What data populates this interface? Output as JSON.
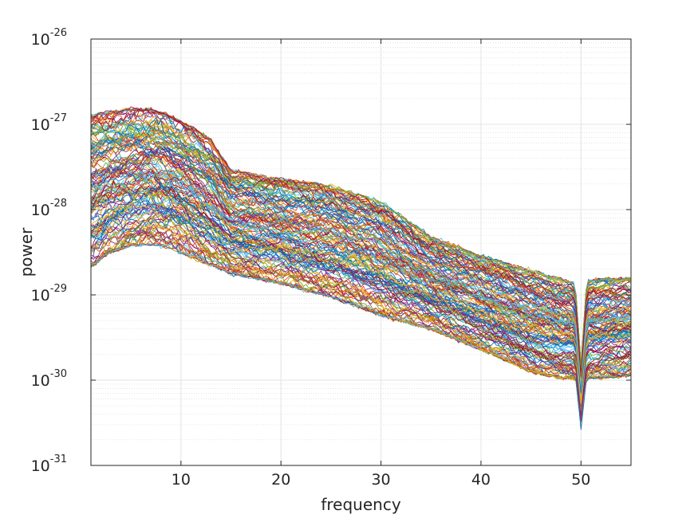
{
  "chart_data": {
    "type": "line",
    "title": "",
    "xlabel": "frequency",
    "ylabel": "power",
    "xlim": [
      1,
      55
    ],
    "ylim": [
      1e-31,
      1e-26
    ],
    "yscale": "log",
    "grid": true,
    "minor_grid": true,
    "legend": "none",
    "x_ticks": [
      {
        "value": 10,
        "label": "10"
      },
      {
        "value": 20,
        "label": "20"
      },
      {
        "value": 30,
        "label": "30"
      },
      {
        "value": 40,
        "label": "40"
      },
      {
        "value": 50,
        "label": "50"
      }
    ],
    "y_ticks": [
      {
        "value": 1e-31,
        "base": "10",
        "exp": "-31"
      },
      {
        "value": 1e-30,
        "base": "10",
        "exp": "-30"
      },
      {
        "value": 1e-29,
        "base": "10",
        "exp": "-29"
      },
      {
        "value": 1e-28,
        "base": "10",
        "exp": "-28"
      },
      {
        "value": 1e-27,
        "base": "10",
        "exp": "-27"
      },
      {
        "value": 1e-26,
        "base": "10",
        "exp": "-26"
      }
    ],
    "series_count": 150,
    "x": [
      1,
      3,
      5,
      7,
      9,
      11,
      13,
      15,
      20,
      25,
      30,
      35,
      40,
      45,
      48,
      49.5,
      50,
      50.5,
      52,
      55
    ],
    "envelope_upper": [
      1.4e-27,
      1.5e-27,
      1.6e-27,
      1.6e-27,
      1.3e-27,
      1e-27,
      7e-28,
      3e-28,
      2.4e-28,
      2e-28,
      1.3e-28,
      5e-29,
      3e-29,
      2e-29,
      1.6e-29,
      1.4e-29,
      7e-30,
      1.5e-29,
      1.6e-29,
      1.6e-29
    ],
    "envelope_lower": [
      2e-29,
      3e-29,
      3.5e-29,
      3.7e-29,
      3.3e-29,
      2.6e-29,
      2.1e-29,
      1.7e-29,
      1.3e-29,
      9e-30,
      5.5e-30,
      3.8e-30,
      2.2e-30,
      1.2e-30,
      1e-30,
      1e-30,
      5e-31,
      1e-30,
      1e-30,
      1.1e-30
    ],
    "colors": [
      "#0072BD",
      "#D95319",
      "#EDB120",
      "#7E2F8E",
      "#77AC30",
      "#4DBEEE",
      "#A2142F"
    ]
  }
}
